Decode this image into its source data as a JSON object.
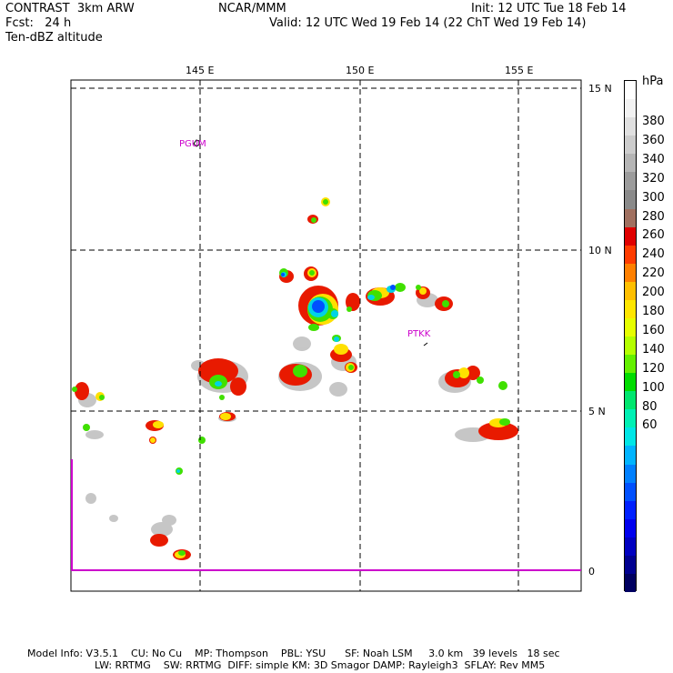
{
  "header": {
    "left_line1": "CONTRAST  3km ARW",
    "left_line2": "Fcst:   24 h",
    "left_line3": "Ten-dBZ altitude",
    "center": "NCAR/MMM",
    "init": "Init: 12 UTC Tue 18 Feb 14",
    "valid": "Valid: 12 UTC Wed 19 Feb 14 (22 ChT Wed 19 Feb 14)"
  },
  "map": {
    "lon_labels": [
      "145 E",
      "150 E",
      "155 E"
    ],
    "lat_labels": [
      "15 N",
      "10 N",
      "5 N",
      "0"
    ],
    "stations": [
      "PGUM",
      "PTKK"
    ],
    "colors": {
      "station": "#cc00cc",
      "equator": "#cc00cc",
      "grid": "#000000"
    }
  },
  "colorbar": {
    "unit": "hPa",
    "labels": [
      "380",
      "360",
      "340",
      "320",
      "300",
      "280",
      "260",
      "240",
      "220",
      "200",
      "180",
      "160",
      "140",
      "120",
      "100",
      "80",
      "60"
    ],
    "colors": [
      "#ffffff",
      "#f2f2f2",
      "#e0e0e0",
      "#cccccc",
      "#b5b5b5",
      "#9c9c9c",
      "#8a8a8a",
      "#a07060",
      "#e00000",
      "#ff3c00",
      "#ff8000",
      "#ffbf00",
      "#ffe600",
      "#e6ff00",
      "#b4ff00",
      "#64f000",
      "#00dc00",
      "#00e66e",
      "#00f0b4",
      "#00e6e6",
      "#00b4ff",
      "#0080ff",
      "#0050ff",
      "#0020ff",
      "#0000ee",
      "#0000c0",
      "#000090",
      "#000060"
    ]
  },
  "footer": {
    "line1": "Model Info: V3.5.1    CU: No Cu    MP: Thompson    PBL: YSU      SF: Noah LSM     3.0 km   39 levels   18 sec",
    "line2": "LW: RRTMG    SW: RRTMG  DIFF: simple KM: 3D Smagor DAMP: Rayleigh3  SFLAY: Rev MM5"
  }
}
